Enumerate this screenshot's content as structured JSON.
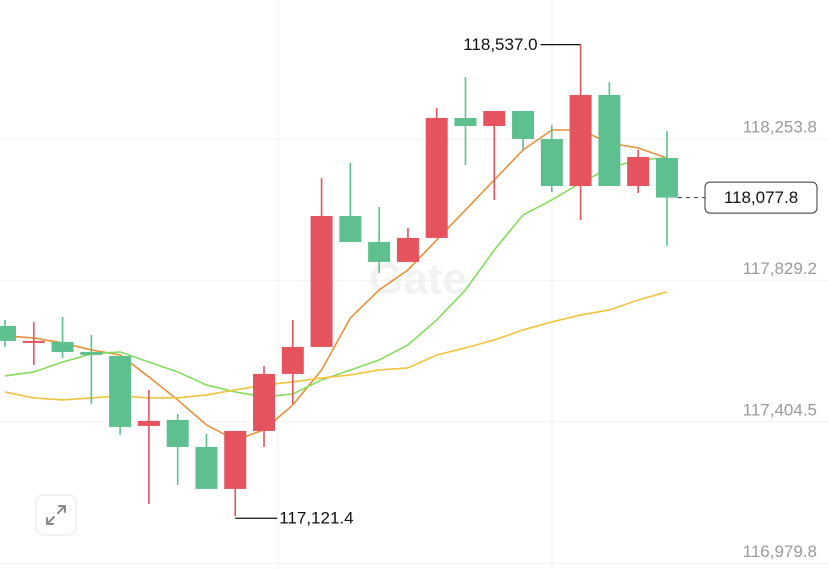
{
  "chart_data": {
    "type": "candlestick",
    "watermark": "Gate",
    "up_color": "#e5535f",
    "down_color": "#5dc08e",
    "ylim": [
      116963,
      118671
    ],
    "yticks": [
      {
        "value": 118253.8,
        "label": "118,253.8"
      },
      {
        "value": 117829.2,
        "label": "117,829.2"
      },
      {
        "value": 117404.5,
        "label": "117,404.5"
      },
      {
        "value": 116979.8,
        "label": "116,979.8"
      }
    ],
    "grid": true,
    "candles": [
      {
        "open": 117692.6,
        "high": 117710.6,
        "low": 117629.6,
        "close": 117647.6
      },
      {
        "open": 117641.6,
        "high": 117704.6,
        "low": 117575.5,
        "close": 117647.6
      },
      {
        "open": 117644.6,
        "high": 117719.6,
        "low": 117596.5,
        "close": 117614.5
      },
      {
        "open": 117614.5,
        "high": 117665.6,
        "low": 117458.5,
        "close": 117605.5
      },
      {
        "open": 117602.5,
        "high": 117602.5,
        "low": 117365.4,
        "close": 117389.5
      },
      {
        "open": 117392.5,
        "high": 117500.5,
        "low": 117158.4,
        "close": 117407.5
      },
      {
        "open": 117410.5,
        "high": 117428.5,
        "low": 117215.4,
        "close": 117329.4
      },
      {
        "open": 117329.4,
        "high": 117368.4,
        "low": 117203.4,
        "close": 117203.4
      },
      {
        "open": 117203.4,
        "high": 117377.4,
        "low": 117121.4,
        "close": 117377.4
      },
      {
        "open": 117377.4,
        "high": 117572.5,
        "low": 117329.4,
        "close": 117548.5
      },
      {
        "open": 117548.5,
        "high": 117710.6,
        "low": 117458.5,
        "close": 117629.6
      },
      {
        "open": 117629.6,
        "high": 118136.8,
        "low": 117629.6,
        "close": 118022.7
      },
      {
        "open": 118022.7,
        "high": 118181.8,
        "low": 117944.7,
        "close": 117944.7
      },
      {
        "open": 117944.7,
        "high": 118049.7,
        "low": 117851.6,
        "close": 117884.7
      },
      {
        "open": 117884.7,
        "high": 117986.7,
        "low": 117884.7,
        "close": 117956.7
      },
      {
        "open": 117956.7,
        "high": 118346.8,
        "low": 117956.7,
        "close": 118316.8
      },
      {
        "open": 118316.8,
        "high": 118439.9,
        "low": 118175.8,
        "close": 118292.8
      },
      {
        "open": 118292.8,
        "high": 118337.8,
        "low": 118070.7,
        "close": 118337.8
      },
      {
        "open": 118337.8,
        "high": 118337.8,
        "low": 118220.8,
        "close": 118253.8
      },
      {
        "open": 118253.8,
        "high": 118295.8,
        "low": 118094.7,
        "close": 118112.7
      },
      {
        "open": 118112.7,
        "high": 118537.0,
        "low": 118010.7,
        "close": 118385.9
      },
      {
        "open": 118385.9,
        "high": 118424.9,
        "low": 118112.7,
        "close": 118112.7
      },
      {
        "open": 118112.7,
        "high": 118220.8,
        "low": 118091.7,
        "close": 118199.8
      },
      {
        "open": 118196.8,
        "high": 118277.8,
        "low": 117932.7,
        "close": 118077.8
      }
    ],
    "moving_averages": [
      {
        "color": "#e8913a",
        "values": [
          117662.6,
          117656.6,
          117641.6,
          117620.5,
          117605.5,
          117539.5,
          117470.5,
          117395.5,
          117350.4,
          117380.5,
          117455.5,
          117560.5,
          117716.6,
          117800.6,
          117860.6,
          117950.7,
          118040.7,
          118130.8,
          118220.8,
          118280.8,
          118280.8,
          118241.8,
          118226.8,
          118196.8
        ]
      },
      {
        "color": "#86dc5c",
        "values": [
          117542.5,
          117554.5,
          117584.5,
          117608.5,
          117614.5,
          117584.5,
          117554.5,
          117515.5,
          117494.5,
          117479.5,
          117488.5,
          117530.5,
          117560.5,
          117590.5,
          117635.6,
          117710.6,
          117800.6,
          117920.7,
          118025.7,
          118070.7,
          118121.7,
          118166.8,
          118190.8,
          118196.8
        ]
      },
      {
        "color": "#f0c43e",
        "values": [
          117494.5,
          117476.5,
          117470.5,
          117476.5,
          117482.5,
          117476.5,
          117476.5,
          117485.5,
          117500.5,
          117515.5,
          117524.5,
          117536.5,
          117545.5,
          117560.5,
          117566.5,
          117605.5,
          117626.5,
          117650.6,
          117680.6,
          117704.6,
          117725.6,
          117740.6,
          117770.6,
          117794.6
        ]
      }
    ],
    "value_labels": {
      "high": "118,537.0",
      "low": "117,121.4",
      "last": "118,077.8"
    }
  }
}
